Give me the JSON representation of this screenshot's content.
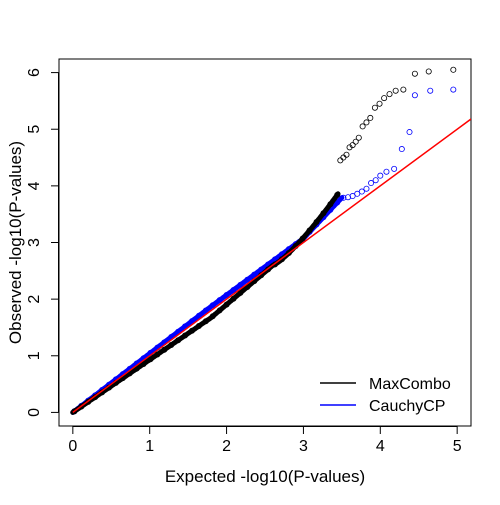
{
  "chart_data": {
    "type": "scatter",
    "title": "",
    "xlabel": "Expected -log10(P-values)",
    "ylabel": "Observed -log10(P-values)",
    "xlim": [
      -0.18,
      5.18
    ],
    "ylim": [
      -0.24,
      6.24
    ],
    "xticks": [
      0,
      1,
      2,
      3,
      4,
      5
    ],
    "yticks": [
      0,
      1,
      2,
      3,
      4,
      5,
      6
    ],
    "grid": false,
    "legend_position": "bottom-right",
    "reference_line": {
      "label": "",
      "slope": 1,
      "intercept": 0,
      "color": "#ff0000"
    },
    "series": [
      {
        "name": "MaxCombo",
        "color": "#000000",
        "marker": "open-circle",
        "points": [
          [
            3.48,
            4.45
          ],
          [
            3.52,
            4.5
          ],
          [
            3.56,
            4.55
          ],
          [
            3.6,
            4.68
          ],
          [
            3.64,
            4.72
          ],
          [
            3.68,
            4.78
          ],
          [
            3.72,
            4.85
          ],
          [
            3.77,
            5.05
          ],
          [
            3.82,
            5.12
          ],
          [
            3.87,
            5.2
          ],
          [
            3.93,
            5.38
          ],
          [
            3.99,
            5.45
          ],
          [
            4.05,
            5.55
          ],
          [
            4.12,
            5.62
          ],
          [
            4.2,
            5.68
          ],
          [
            4.3,
            5.7
          ],
          [
            4.45,
            5.98
          ],
          [
            4.63,
            6.02
          ],
          [
            4.95,
            6.05
          ]
        ]
      },
      {
        "name": "CauchyCP",
        "color": "#0000ff",
        "marker": "open-circle",
        "points": [
          [
            3.52,
            3.79
          ],
          [
            3.58,
            3.8
          ],
          [
            3.64,
            3.82
          ],
          [
            3.7,
            3.86
          ],
          [
            3.76,
            3.9
          ],
          [
            3.82,
            3.95
          ],
          [
            3.88,
            4.05
          ],
          [
            3.94,
            4.1
          ],
          [
            4.0,
            4.18
          ],
          [
            4.08,
            4.25
          ],
          [
            4.18,
            4.3
          ],
          [
            4.28,
            4.65
          ],
          [
            4.38,
            4.95
          ],
          [
            4.45,
            5.6
          ],
          [
            4.65,
            5.68
          ],
          [
            4.95,
            5.7
          ]
        ]
      }
    ]
  }
}
